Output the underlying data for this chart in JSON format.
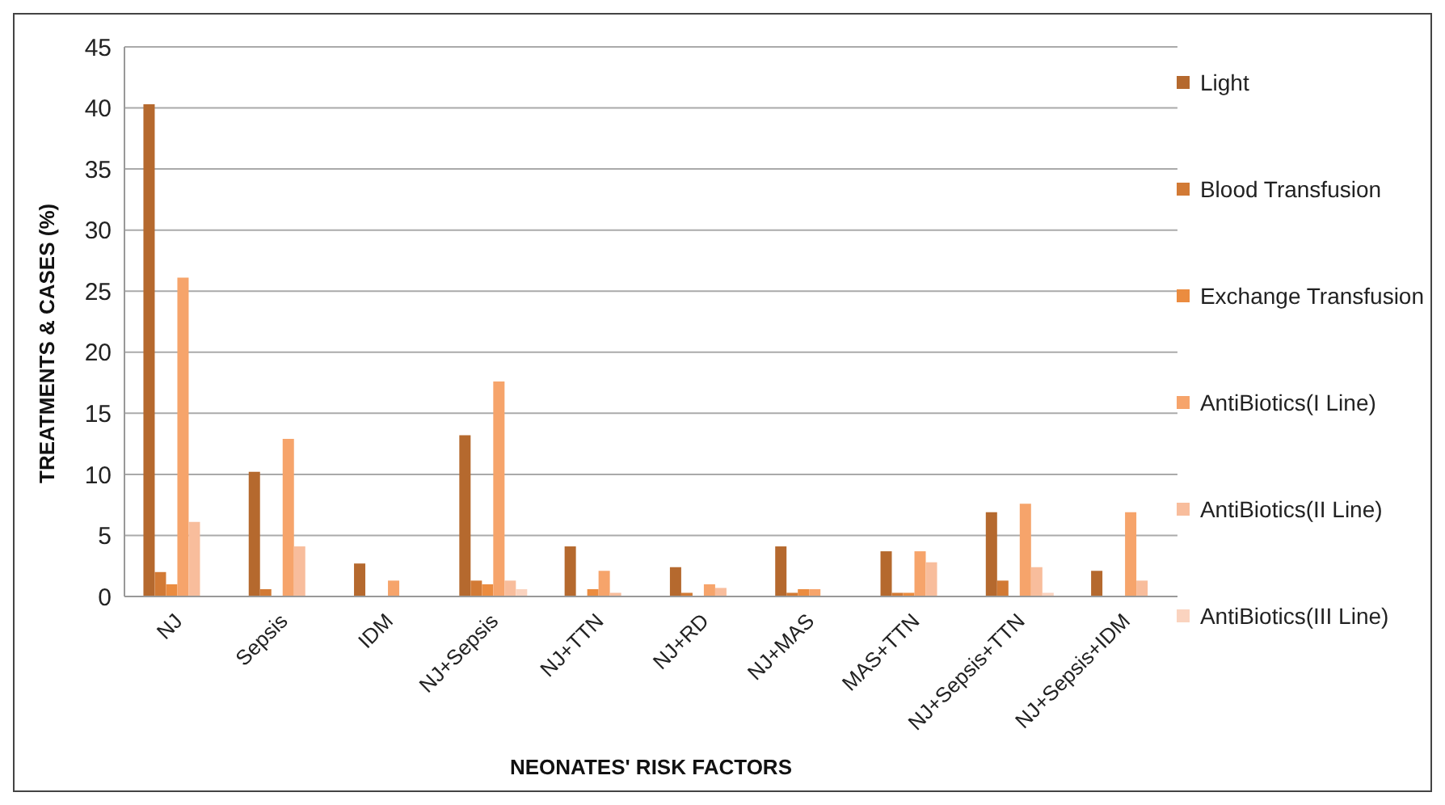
{
  "chart_data": {
    "type": "bar",
    "xlabel": "NEONATES' RISK FACTORS",
    "ylabel": "TREATMENTS & CASES (%)",
    "categories": [
      "NJ",
      "Sepsis",
      "IDM",
      "NJ+Sepsis",
      "NJ+TTN",
      "NJ+RD",
      "NJ+MAS",
      "MAS+TTN",
      "NJ+Sepsis+TTN",
      "NJ+Sepsis+IDM"
    ],
    "series": [
      {
        "name": "Light",
        "color": "#b5692e",
        "values": [
          40.3,
          10.2,
          2.7,
          13.2,
          4.1,
          2.4,
          4.1,
          3.7,
          6.9,
          2.1
        ]
      },
      {
        "name": "Blood Transfusion",
        "color": "#d27a35",
        "values": [
          2,
          0.6,
          0,
          1.3,
          0,
          0.3,
          0.3,
          0.3,
          1.3,
          0
        ]
      },
      {
        "name": "Exchange Transfusion",
        "color": "#eb8c40",
        "values": [
          1,
          0,
          0,
          1,
          0.6,
          0,
          0.6,
          0.3,
          0,
          0
        ]
      },
      {
        "name": "AntiBiotics(I Line)",
        "color": "#f6a46b",
        "values": [
          26.1,
          12.9,
          1.3,
          17.6,
          2.1,
          1,
          0.6,
          3.7,
          7.6,
          6.9
        ]
      },
      {
        "name": "AntiBiotics(II Line)",
        "color": "#f8bd9c",
        "values": [
          6.1,
          4.1,
          0,
          1.3,
          0.3,
          0.7,
          0,
          2.8,
          2.4,
          1.3
        ]
      },
      {
        "name": "AntiBiotics(III Line)",
        "color": "#fad3bf",
        "values": [
          0,
          0,
          0,
          0.6,
          0,
          0,
          0,
          0,
          0.3,
          0
        ]
      }
    ],
    "ylim": [
      0,
      45
    ],
    "yticks": [
      0,
      5,
      10,
      15,
      20,
      25,
      30,
      35,
      40,
      45
    ],
    "grid": "y",
    "legend": "right"
  }
}
